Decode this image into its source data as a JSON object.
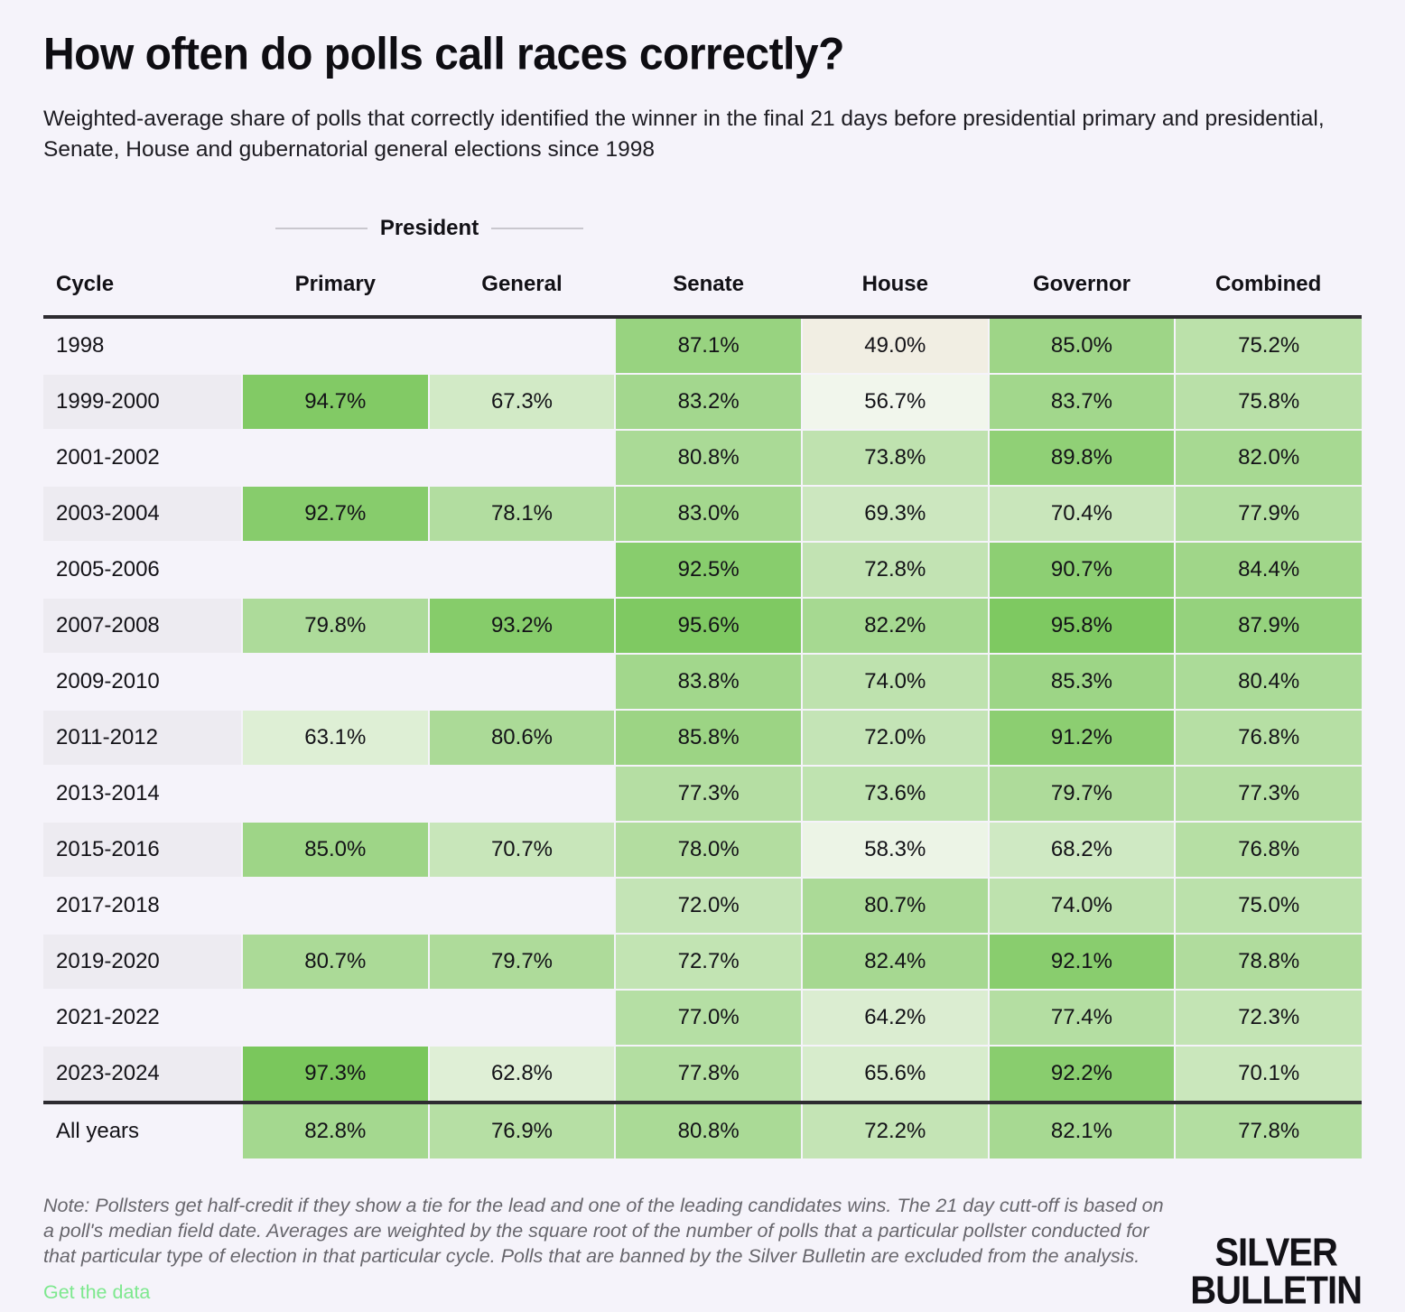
{
  "title": "How often do polls call races correctly?",
  "subtitle": "Weighted-average share of polls that correctly identified the winner in the final 21 days before presidential primary and presidential, Senate, House and gubernatorial general elections since 1998",
  "spanner_label": "President",
  "chart_data": {
    "type": "heatmap",
    "title": "How often do polls call races correctly?",
    "value_format": "percent_1dp",
    "columns": [
      "Cycle",
      "Primary",
      "General",
      "Senate",
      "House",
      "Governor",
      "Combined"
    ],
    "president_spanner_columns": [
      "Primary",
      "General"
    ],
    "rows": [
      {
        "cycle": "1998",
        "values": [
          null,
          null,
          87.1,
          49.0,
          85.0,
          75.2
        ]
      },
      {
        "cycle": "1999-2000",
        "values": [
          94.7,
          67.3,
          83.2,
          56.7,
          83.7,
          75.8
        ]
      },
      {
        "cycle": "2001-2002",
        "values": [
          null,
          null,
          80.8,
          73.8,
          89.8,
          82.0
        ]
      },
      {
        "cycle": "2003-2004",
        "values": [
          92.7,
          78.1,
          83.0,
          69.3,
          70.4,
          77.9
        ]
      },
      {
        "cycle": "2005-2006",
        "values": [
          null,
          null,
          92.5,
          72.8,
          90.7,
          84.4
        ]
      },
      {
        "cycle": "2007-2008",
        "values": [
          79.8,
          93.2,
          95.6,
          82.2,
          95.8,
          87.9
        ]
      },
      {
        "cycle": "2009-2010",
        "values": [
          null,
          null,
          83.8,
          74.0,
          85.3,
          80.4
        ]
      },
      {
        "cycle": "2011-2012",
        "values": [
          63.1,
          80.6,
          85.8,
          72.0,
          91.2,
          76.8
        ]
      },
      {
        "cycle": "2013-2014",
        "values": [
          null,
          null,
          77.3,
          73.6,
          79.7,
          77.3
        ]
      },
      {
        "cycle": "2015-2016",
        "values": [
          85.0,
          70.7,
          78.0,
          58.3,
          68.2,
          76.8
        ]
      },
      {
        "cycle": "2017-2018",
        "values": [
          null,
          null,
          72.0,
          80.7,
          74.0,
          75.0
        ]
      },
      {
        "cycle": "2019-2020",
        "values": [
          80.7,
          79.7,
          72.7,
          82.4,
          92.1,
          78.8
        ]
      },
      {
        "cycle": "2021-2022",
        "values": [
          null,
          null,
          77.0,
          64.2,
          77.4,
          72.3
        ]
      },
      {
        "cycle": "2023-2024",
        "values": [
          97.3,
          62.8,
          77.8,
          65.6,
          92.2,
          70.1
        ]
      },
      {
        "cycle": "All years",
        "values": [
          82.8,
          76.9,
          80.8,
          72.2,
          82.1,
          77.8
        ],
        "is_total": true
      }
    ],
    "colorscale": {
      "below_50_color": "#f1eee3",
      "low_color": "#f6f8f2",
      "high_color": "#72c452",
      "white_point": 55,
      "midpoint": 50,
      "max": 100
    }
  },
  "colors": {
    "page_background": "#f5f3fa",
    "stripe_background": "#edebf1",
    "rule_color": "#2d2b30",
    "note_text": "#67666c",
    "link_green": "#7de88e",
    "text": "#131217"
  },
  "footer": {
    "note": "Note: Pollsters get half-credit if they show a tie for the lead and one of the leading candidates wins. The 21 day cutt-off is based on a poll's median field date. Averages are weighted by the square root of the number of polls that a particular pollster conducted for that particular type of election in that particular cycle. Polls that are banned by the Silver Bulletin are excluded from the analysis.",
    "link_label": "Get the data",
    "logo_line1": "SILVER",
    "logo_line2": "BULLETIN"
  }
}
